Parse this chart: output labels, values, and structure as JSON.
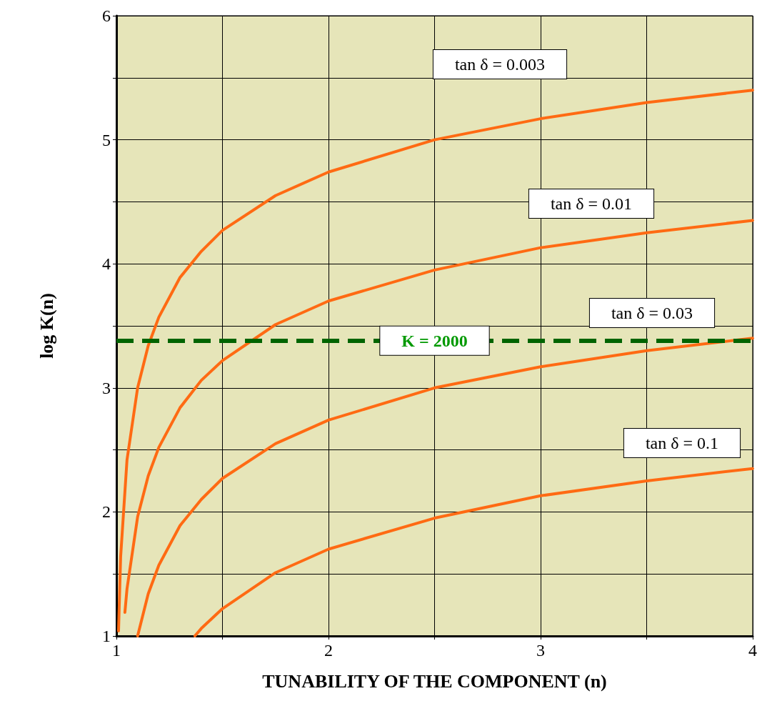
{
  "chart_data": {
    "type": "line",
    "xlabel": "TUNABILITY OF THE COMPONENT (n)",
    "ylabel": "log K(n)",
    "xlim": [
      1,
      4
    ],
    "ylim": [
      1,
      6
    ],
    "xticks": [
      1,
      {
        "value": 1.5,
        "label": null
      },
      2,
      {
        "value": 2.5,
        "label": null
      },
      3,
      {
        "value": 3.5,
        "label": null
      },
      4
    ],
    "yticks": [
      1,
      {
        "value": 1.5,
        "label": null
      },
      2,
      {
        "value": 2.5,
        "label": null
      },
      3,
      {
        "value": 3.5,
        "label": null
      },
      4,
      {
        "value": 4.5,
        "label": null
      },
      5,
      {
        "value": 5.5,
        "label": null
      },
      6
    ],
    "grid": true,
    "marker": "none",
    "line_style": "solid",
    "series": [
      {
        "color": "#ff6a13",
        "x": [
          1.01,
          1.02,
          1.05,
          1.1,
          1.15,
          1.2,
          1.3,
          1.4,
          1.5,
          1.75,
          2,
          2.5,
          3,
          3.5,
          4
        ],
        "values": [
          1.04,
          1.64,
          2.42,
          3.0,
          3.34,
          3.57,
          3.89,
          4.1,
          4.27,
          4.55,
          4.74,
          5.0,
          5.17,
          5.3,
          5.4
        ]
      },
      {
        "color": "#ff6a13",
        "x": [
          1.04,
          1.05,
          1.1,
          1.15,
          1.2,
          1.3,
          1.4,
          1.5,
          1.75,
          2,
          2.5,
          3,
          3.5,
          4
        ],
        "values": [
          1.19,
          1.38,
          1.96,
          2.29,
          2.52,
          2.84,
          3.06,
          3.22,
          3.51,
          3.7,
          3.95,
          4.13,
          4.25,
          4.35
        ]
      },
      {
        "color": "#ff6a13",
        "x": [
          1.1,
          1.15,
          1.2,
          1.3,
          1.4,
          1.5,
          1.75,
          2,
          2.5,
          3,
          3.5,
          4
        ],
        "values": [
          1.0,
          1.34,
          1.57,
          1.89,
          2.1,
          2.27,
          2.55,
          2.74,
          3.0,
          3.17,
          3.3,
          3.4
        ]
      },
      {
        "color": "#ff6a13",
        "x": [
          1.37,
          1.4,
          1.5,
          1.75,
          2,
          2.5,
          3,
          3.5,
          4
        ],
        "values": [
          1.0,
          1.06,
          1.22,
          1.51,
          1.7,
          1.95,
          2.13,
          2.25,
          2.35
        ]
      }
    ],
    "ref_lines": [
      {
        "axis": "y",
        "value": 3.38,
        "color": "#006400",
        "line_style": "dashed"
      }
    ],
    "annotations": [
      "tan δ = 0.003",
      "tan δ = 0.01",
      "tan δ = 0.03",
      "tan δ = 0.1",
      {
        "text": "K = 2000",
        "x": 2.5,
        "y": 3.38
      }
    ]
  }
}
